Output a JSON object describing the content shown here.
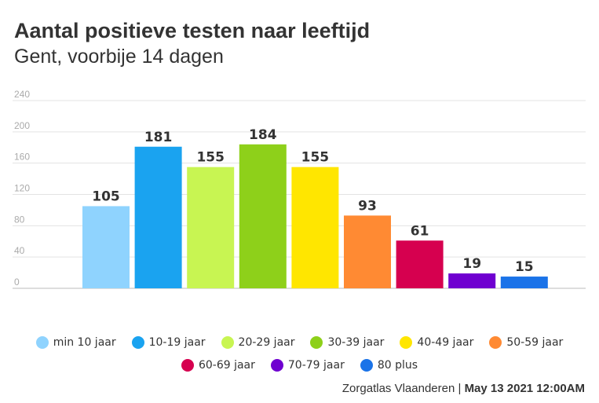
{
  "title": "Aantal positieve testen naar leeftijd",
  "subtitle": "Gent, voorbije 14 dagen",
  "footer": {
    "source": "Zorgatlas Vlaanderen",
    "separator": " | ",
    "date": "May 13 2021 12:00AM"
  },
  "chart_data": {
    "type": "bar",
    "categories": [
      "min 10 jaar",
      "10-19 jaar",
      "20-29 jaar",
      "30-39 jaar",
      "40-49 jaar",
      "50-59 jaar",
      "60-69 jaar",
      "70-79 jaar",
      "80 plus"
    ],
    "values": [
      105,
      181,
      155,
      184,
      155,
      93,
      61,
      19,
      15
    ],
    "colors": [
      "#8fd3fe",
      "#1aa3f0",
      "#c8f552",
      "#8ed01a",
      "#ffe600",
      "#ff8a33",
      "#d6004f",
      "#6f00d0",
      "#1a73e8"
    ],
    "ylim": [
      0,
      240
    ],
    "yticks": [
      "0",
      "40",
      "80",
      "120",
      "160",
      "200",
      "240"
    ],
    "title": "Aantal positieve testen naar leeftijd",
    "xlabel": "",
    "ylabel": "",
    "grid": true,
    "legend": "bottom"
  }
}
